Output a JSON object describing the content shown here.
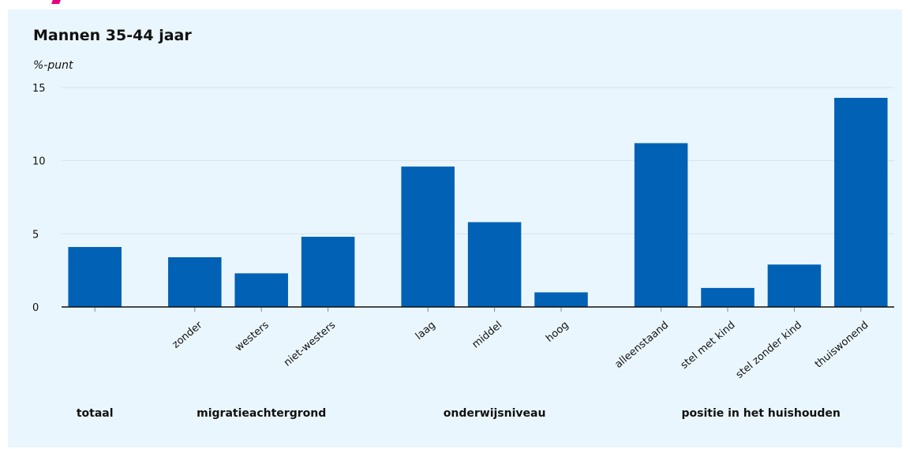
{
  "chart_data": {
    "type": "bar",
    "title": "Mannen 35-44 jaar",
    "ylabel": "%-punt",
    "ylim": [
      0,
      15
    ],
    "yticks": [
      0,
      5,
      10,
      15
    ],
    "grid": true,
    "groups": [
      {
        "label": "totaal",
        "categories": [
          ""
        ],
        "values": [
          4.1
        ]
      },
      {
        "label": "migratieachtergrond",
        "categories": [
          "zonder",
          "westers",
          "niet-westers"
        ],
        "values": [
          3.4,
          2.3,
          4.8
        ]
      },
      {
        "label": "onderwijsniveau",
        "categories": [
          "laag",
          "middel",
          "hoog"
        ],
        "values": [
          9.6,
          5.8,
          1.0
        ]
      },
      {
        "label": "positie in het huishouden",
        "categories": [
          "alleenstaand",
          "stel met kind",
          "stel zonder kind",
          "thuiswonend"
        ],
        "values": [
          11.2,
          1.3,
          2.9,
          14.3
        ]
      }
    ],
    "bar_color": "#0161b5"
  }
}
